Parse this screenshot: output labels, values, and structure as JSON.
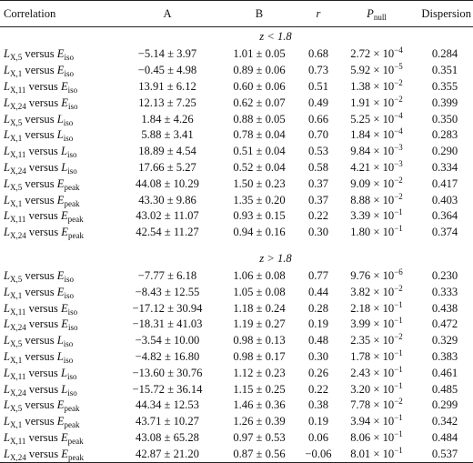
{
  "table": {
    "headers": {
      "correlation": "Correlation",
      "a": "A",
      "b": "B",
      "r": "r",
      "p_main": "P",
      "p_sub": "null",
      "dispersion": "Dispersion"
    },
    "sections": [
      {
        "label": "z < 1.8",
        "rows": [
          {
            "l_sub": "X,5",
            "vs": "versus",
            "e_var": "E",
            "e_sub": "iso",
            "a": "−5.14 ± 3.97",
            "b": "1.01 ± 0.05",
            "r": "0.68",
            "p_mant": "2.72 × 10",
            "p_exp": "−4",
            "disp": "0.284"
          },
          {
            "l_sub": "X,1",
            "vs": "versus",
            "e_var": "E",
            "e_sub": "iso",
            "a": "−0.45 ± 4.98",
            "b": "0.89 ± 0.06",
            "r": "0.73",
            "p_mant": "5.92 × 10",
            "p_exp": "−5",
            "disp": "0.351"
          },
          {
            "l_sub": "X,11",
            "vs": "versus",
            "e_var": "E",
            "e_sub": "iso",
            "a": "13.91 ± 6.12",
            "b": "0.60 ± 0.06",
            "r": "0.51",
            "p_mant": "1.38 × 10",
            "p_exp": "−2",
            "disp": "0.355"
          },
          {
            "l_sub": "X,24",
            "vs": "versus",
            "e_var": "E",
            "e_sub": "iso",
            "a": "12.13 ± 7.25",
            "b": "0.62 ± 0.07",
            "r": "0.49",
            "p_mant": "1.91 × 10",
            "p_exp": "−2",
            "disp": "0.399"
          },
          {
            "l_sub": "X,5",
            "vs": "versus",
            "e_var": "L",
            "e_sub": "iso",
            "a": "1.84 ± 4.26",
            "b": "0.88 ± 0.05",
            "r": "0.66",
            "p_mant": "5.25 × 10",
            "p_exp": "−4",
            "disp": "0.350"
          },
          {
            "l_sub": "X,1",
            "vs": "versus",
            "e_var": "L",
            "e_sub": "iso",
            "a": "5.88 ± 3.41",
            "b": "0.78 ± 0.04",
            "r": "0.70",
            "p_mant": "1.84 × 10",
            "p_exp": "−4",
            "disp": "0.283"
          },
          {
            "l_sub": "X,11",
            "vs": "versus",
            "e_var": "L",
            "e_sub": "iso",
            "a": "18.89 ± 4.54",
            "b": "0.51 ± 0.04",
            "r": "0.53",
            "p_mant": "9.84 × 10",
            "p_exp": "−3",
            "disp": "0.290"
          },
          {
            "l_sub": "X,24",
            "vs": "versus",
            "e_var": "L",
            "e_sub": "iso",
            "a": "17.66 ± 5.27",
            "b": "0.52 ± 0.04",
            "r": "0.58",
            "p_mant": "4.21 × 10",
            "p_exp": "−3",
            "disp": "0.334"
          },
          {
            "l_sub": "X,5",
            "vs": "versus",
            "e_var": "E",
            "e_sub": "peak",
            "a": "44.08 ± 10.29",
            "b": "1.50 ± 0.23",
            "r": "0.37",
            "p_mant": "9.09 × 10",
            "p_exp": "−2",
            "disp": "0.417"
          },
          {
            "l_sub": "X,1",
            "vs": "versus",
            "e_var": "E",
            "e_sub": "peak",
            "a": "43.30 ± 9.86",
            "b": "1.35 ± 0.20",
            "r": "0.37",
            "p_mant": "8.88 × 10",
            "p_exp": "−2",
            "disp": "0.403"
          },
          {
            "l_sub": "X,11",
            "vs": "versus",
            "e_var": "E",
            "e_sub": "peak",
            "a": "43.02 ± 11.07",
            "b": "0.93 ± 0.15",
            "r": "0.22",
            "p_mant": "3.39 × 10",
            "p_exp": "−1",
            "disp": "0.364"
          },
          {
            "l_sub": "X,24",
            "vs": "versus",
            "e_var": "E",
            "e_sub": "peak",
            "a": "42.54 ± 11.27",
            "b": "0.94 ± 0.16",
            "r": "0.30",
            "p_mant": "1.80 × 10",
            "p_exp": "−1",
            "disp": "0.374"
          }
        ]
      },
      {
        "label": "z > 1.8",
        "rows": [
          {
            "l_sub": "X,5",
            "vs": "versus",
            "e_var": "E",
            "e_sub": "iso",
            "a": "−7.77 ± 6.18",
            "b": "1.06 ± 0.08",
            "r": "0.77",
            "p_mant": "9.76 × 10",
            "p_exp": "−6",
            "disp": "0.230"
          },
          {
            "l_sub": "X,1",
            "vs": "versus",
            "e_var": "E",
            "e_sub": "iso",
            "a": "−8.43 ± 12.55",
            "b": "1.05 ± 0.08",
            "r": "0.44",
            "p_mant": "3.82 × 10",
            "p_exp": "−2",
            "disp": "0.333"
          },
          {
            "l_sub": "X,11",
            "vs": "versus",
            "e_var": "E",
            "e_sub": "iso",
            "a": "−17.12 ± 30.94",
            "b": "1.18 ± 0.24",
            "r": "0.28",
            "p_mant": "2.18 × 10",
            "p_exp": "−1",
            "disp": "0.438"
          },
          {
            "l_sub": "X,24",
            "vs": "versus",
            "e_var": "E",
            "e_sub": "iso",
            "a": "−18.31 ± 41.03",
            "b": "1.19 ± 0.27",
            "r": "0.19",
            "p_mant": "3.99 × 10",
            "p_exp": "−1",
            "disp": "0.472"
          },
          {
            "l_sub": "X,5",
            "vs": "versus",
            "e_var": "L",
            "e_sub": "iso",
            "a": "−3.54 ± 10.00",
            "b": "0.98 ± 0.13",
            "r": "0.48",
            "p_mant": "2.35 × 10",
            "p_exp": "−2",
            "disp": "0.329"
          },
          {
            "l_sub": "X,1",
            "vs": "versus",
            "e_var": "L",
            "e_sub": "iso",
            "a": "−4.82 ± 16.80",
            "b": "0.98 ± 0.17",
            "r": "0.30",
            "p_mant": "1.78 × 10",
            "p_exp": "−1",
            "disp": "0.383"
          },
          {
            "l_sub": "X,11",
            "vs": "versus",
            "e_var": "L",
            "e_sub": "iso",
            "a": "−13.60 ± 30.76",
            "b": "1.12 ± 0.23",
            "r": "0.26",
            "p_mant": "2.43 × 10",
            "p_exp": "−1",
            "disp": "0.461"
          },
          {
            "l_sub": "X,24",
            "vs": "versus",
            "e_var": "L",
            "e_sub": "iso",
            "a": "−15.72 ± 36.14",
            "b": "1.15 ± 0.25",
            "r": "0.22",
            "p_mant": "3.20 × 10",
            "p_exp": "−1",
            "disp": "0.485"
          },
          {
            "l_sub": "X,5",
            "vs": "versus",
            "e_var": "E",
            "e_sub": "peak",
            "a": "44.34 ± 12.53",
            "b": "1.46 ± 0.36",
            "r": "0.38",
            "p_mant": "7.78 × 10",
            "p_exp": "−2",
            "disp": "0.299"
          },
          {
            "l_sub": "X,1",
            "vs": "versus",
            "e_var": "E",
            "e_sub": "peak",
            "a": "43.71 ± 10.27",
            "b": "1.26 ± 0.39",
            "r": "0.19",
            "p_mant": "3.94 × 10",
            "p_exp": "−1",
            "disp": "0.342"
          },
          {
            "l_sub": "X,11",
            "vs": "versus",
            "e_var": "E",
            "e_sub": "peak",
            "a": "43.08 ± 65.28",
            "b": "0.97 ± 0.53",
            "r": "0.06",
            "p_mant": "8.06 × 10",
            "p_exp": "−1",
            "disp": "0.484"
          },
          {
            "l_sub": "X,24",
            "vs": "versus",
            "e_var": "E",
            "e_sub": "peak",
            "a": "42.87 ± 21.20",
            "b": "0.87 ± 0.56",
            "r": "−0.06",
            "p_mant": "8.01 × 10",
            "p_exp": "−1",
            "disp": "0.537"
          }
        ]
      }
    ]
  }
}
